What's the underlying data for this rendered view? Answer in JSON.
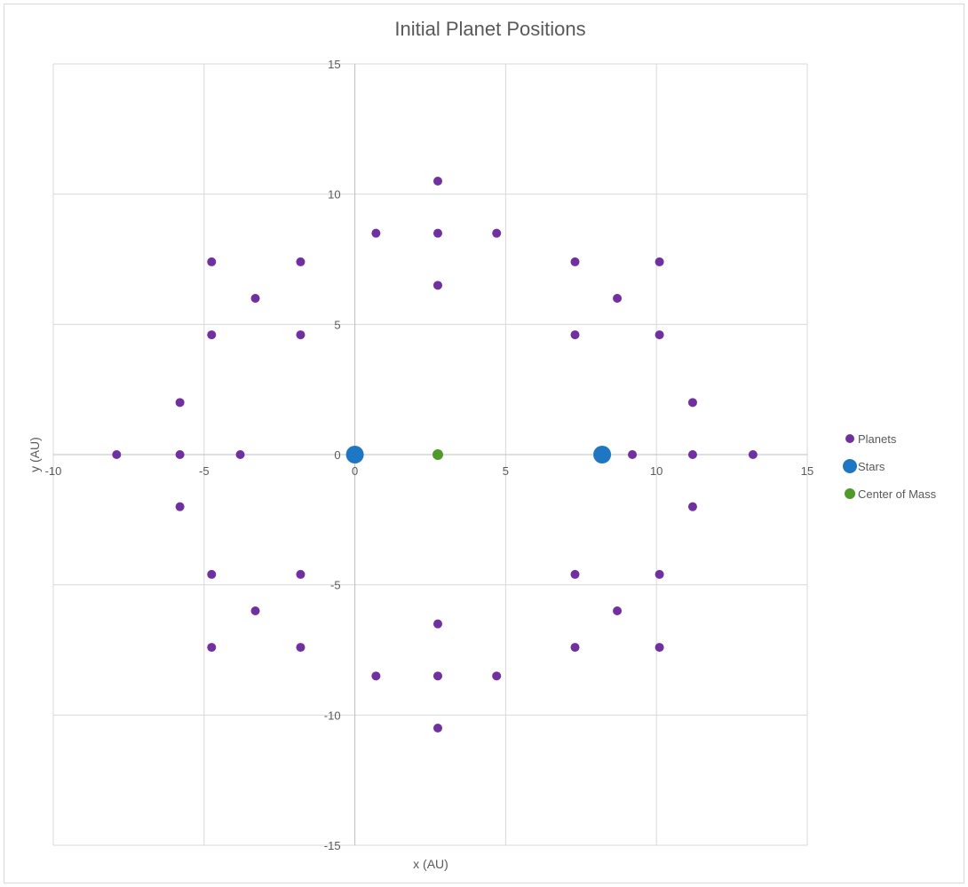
{
  "chart_data": {
    "type": "scatter",
    "title": "Initial Planet Positions",
    "xlabel": "x (AU)",
    "ylabel": "y (AU)",
    "xlim": [
      -10,
      15
    ],
    "ylim": [
      -15,
      15
    ],
    "xticks": [
      -10,
      -5,
      0,
      5,
      10,
      15
    ],
    "yticks": [
      -15,
      -10,
      -5,
      0,
      5,
      10,
      15
    ],
    "grid": true,
    "legend_position": "right",
    "series": [
      {
        "name": "Planets",
        "color": "#7030a0",
        "points": [
          [
            2.75,
            10.5
          ],
          [
            0.7,
            8.5
          ],
          [
            2.75,
            8.5
          ],
          [
            4.7,
            8.5
          ],
          [
            2.75,
            6.5
          ],
          [
            2.75,
            -6.5
          ],
          [
            0.7,
            -8.5
          ],
          [
            2.75,
            -8.5
          ],
          [
            4.7,
            -8.5
          ],
          [
            2.75,
            -10.5
          ],
          [
            -4.75,
            7.4
          ],
          [
            -1.8,
            7.4
          ],
          [
            -3.3,
            6.0
          ],
          [
            -4.75,
            4.6
          ],
          [
            -1.8,
            4.6
          ],
          [
            -4.75,
            -4.6
          ],
          [
            -1.8,
            -4.6
          ],
          [
            -3.3,
            -6.0
          ],
          [
            -4.75,
            -7.4
          ],
          [
            -1.8,
            -7.4
          ],
          [
            7.3,
            7.4
          ],
          [
            10.1,
            7.4
          ],
          [
            8.7,
            6.0
          ],
          [
            7.3,
            4.6
          ],
          [
            10.1,
            4.6
          ],
          [
            7.3,
            -4.6
          ],
          [
            10.1,
            -4.6
          ],
          [
            8.7,
            -6.0
          ],
          [
            7.3,
            -7.4
          ],
          [
            10.1,
            -7.4
          ],
          [
            -5.8,
            2.0
          ],
          [
            -7.9,
            0
          ],
          [
            -5.8,
            0
          ],
          [
            -3.8,
            0
          ],
          [
            -5.8,
            -2.0
          ],
          [
            11.2,
            2.0
          ],
          [
            9.2,
            0
          ],
          [
            11.2,
            0
          ],
          [
            13.2,
            0
          ],
          [
            11.2,
            -2.0
          ]
        ]
      },
      {
        "name": "Stars",
        "color": "#1f77c4",
        "points": [
          [
            0,
            0
          ],
          [
            8.2,
            0
          ]
        ]
      },
      {
        "name": "Center of Mass",
        "color": "#4e9a2a",
        "points": [
          [
            2.75,
            0
          ]
        ]
      }
    ]
  }
}
